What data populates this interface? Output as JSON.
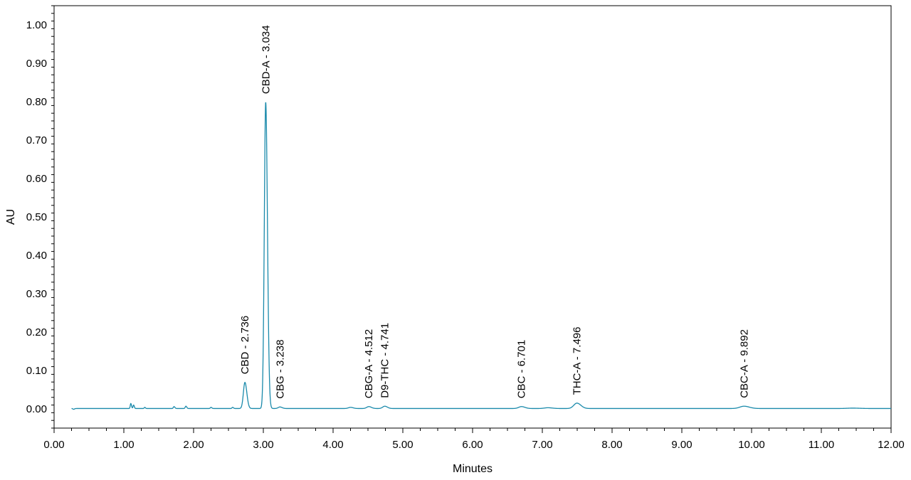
{
  "chart_data": {
    "type": "line",
    "xlabel": "Minutes",
    "ylabel": "AU",
    "xlim": [
      0,
      12
    ],
    "ylim": [
      -0.05,
      1.05
    ],
    "x_ticks": [
      "0.00",
      "1.00",
      "2.00",
      "3.00",
      "4.00",
      "5.00",
      "6.00",
      "7.00",
      "8.00",
      "9.00",
      "10.00",
      "11.00",
      "12.00"
    ],
    "x_tick_values": [
      0,
      1,
      2,
      3,
      4,
      5,
      6,
      7,
      8,
      9,
      10,
      11,
      12
    ],
    "y_ticks": [
      "0.00",
      "0.10",
      "0.20",
      "0.30",
      "0.40",
      "0.50",
      "0.60",
      "0.70",
      "0.80",
      "0.90",
      "1.00"
    ],
    "y_tick_values": [
      0,
      0.1,
      0.2,
      0.3,
      0.4,
      0.5,
      0.6,
      0.7,
      0.8,
      0.9,
      1.0
    ],
    "grid": false,
    "colors": {
      "trace": "#1a8aab",
      "axis": "#000000"
    },
    "baseline_offset": 0.001,
    "peaks": [
      {
        "label": "CBD - 2.736",
        "rt": 2.736,
        "height": 0.068,
        "width": 0.022
      },
      {
        "label": "CBD-A - 3.034",
        "rt": 3.034,
        "height": 0.798,
        "width": 0.02
      },
      {
        "label": "CBG - 3.238",
        "rt": 3.238,
        "height": 0.004,
        "width": 0.025
      },
      {
        "label": "CBG-A - 4.512",
        "rt": 4.512,
        "height": 0.005,
        "width": 0.03
      },
      {
        "label": "D9-THC - 4.741",
        "rt": 4.741,
        "height": 0.006,
        "width": 0.03
      },
      {
        "label": "CBC - 6.701",
        "rt": 6.701,
        "height": 0.005,
        "width": 0.04
      },
      {
        "label": "THC-A - 7.496",
        "rt": 7.496,
        "height": 0.014,
        "width": 0.045
      },
      {
        "label": "CBC-A - 9.892",
        "rt": 9.892,
        "height": 0.006,
        "width": 0.06
      }
    ],
    "minor_peaks": [
      {
        "rt": 0.28,
        "height": -0.002,
        "width": 0.01
      },
      {
        "rt": 1.1,
        "height": 0.013,
        "width": 0.008
      },
      {
        "rt": 1.14,
        "height": 0.009,
        "width": 0.008
      },
      {
        "rt": 1.3,
        "height": 0.003,
        "width": 0.008
      },
      {
        "rt": 1.72,
        "height": 0.005,
        "width": 0.01
      },
      {
        "rt": 1.89,
        "height": 0.006,
        "width": 0.01
      },
      {
        "rt": 2.25,
        "height": 0.003,
        "width": 0.01
      },
      {
        "rt": 2.56,
        "height": 0.003,
        "width": 0.01
      },
      {
        "rt": 4.25,
        "height": 0.003,
        "width": 0.03
      },
      {
        "rt": 7.08,
        "height": 0.002,
        "width": 0.05
      },
      {
        "rt": 11.45,
        "height": 0.001,
        "width": 0.08
      }
    ]
  }
}
